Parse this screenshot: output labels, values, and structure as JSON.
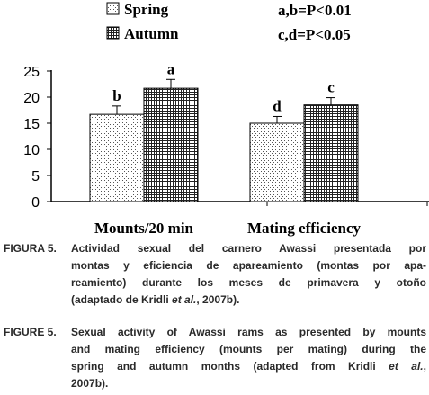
{
  "chart_data": {
    "type": "bar",
    "categories": [
      "Mounts/20 min",
      "Mating efficiency"
    ],
    "series": [
      {
        "name": "Spring",
        "values": [
          16.7,
          15.0
        ],
        "errors": [
          1.6,
          1.3
        ],
        "letters": [
          "b",
          "d"
        ],
        "pattern": "dots"
      },
      {
        "name": "Autumn",
        "values": [
          21.7,
          18.5
        ],
        "errors": [
          1.7,
          1.4
        ],
        "letters": [
          "a",
          "c"
        ],
        "pattern": "crosshatch"
      }
    ],
    "ylim": [
      0,
      25
    ],
    "yticks": [
      "0",
      "5",
      "10",
      "15",
      "20",
      "25"
    ],
    "xlabel": "",
    "ylabel": "",
    "legend_position": "top",
    "significance": [
      "a,b=P<0.01",
      "c,d=P<0.05"
    ],
    "grid": false
  },
  "captions": {
    "es": {
      "label": "FIGURA 5.",
      "lines": [
        "Actividad sexual del carnero Awassi presentada por",
        "montas y eficiencia de apareamiento (montas por apa-",
        "reamiento) durante los meses de primavera y otoño",
        [
          "(adaptado de Kridli ",
          "et al.",
          ", 2007b)."
        ]
      ]
    },
    "en": {
      "label": "FIGURE 5.",
      "lines": [
        "Sexual activity of Awassi rams as presented by mounts",
        "and mating efficiency (mounts per mating) during the",
        [
          "spring and autumn months (adapted from Kridli ",
          "et al.",
          ","
        ],
        "2007b)."
      ]
    }
  }
}
